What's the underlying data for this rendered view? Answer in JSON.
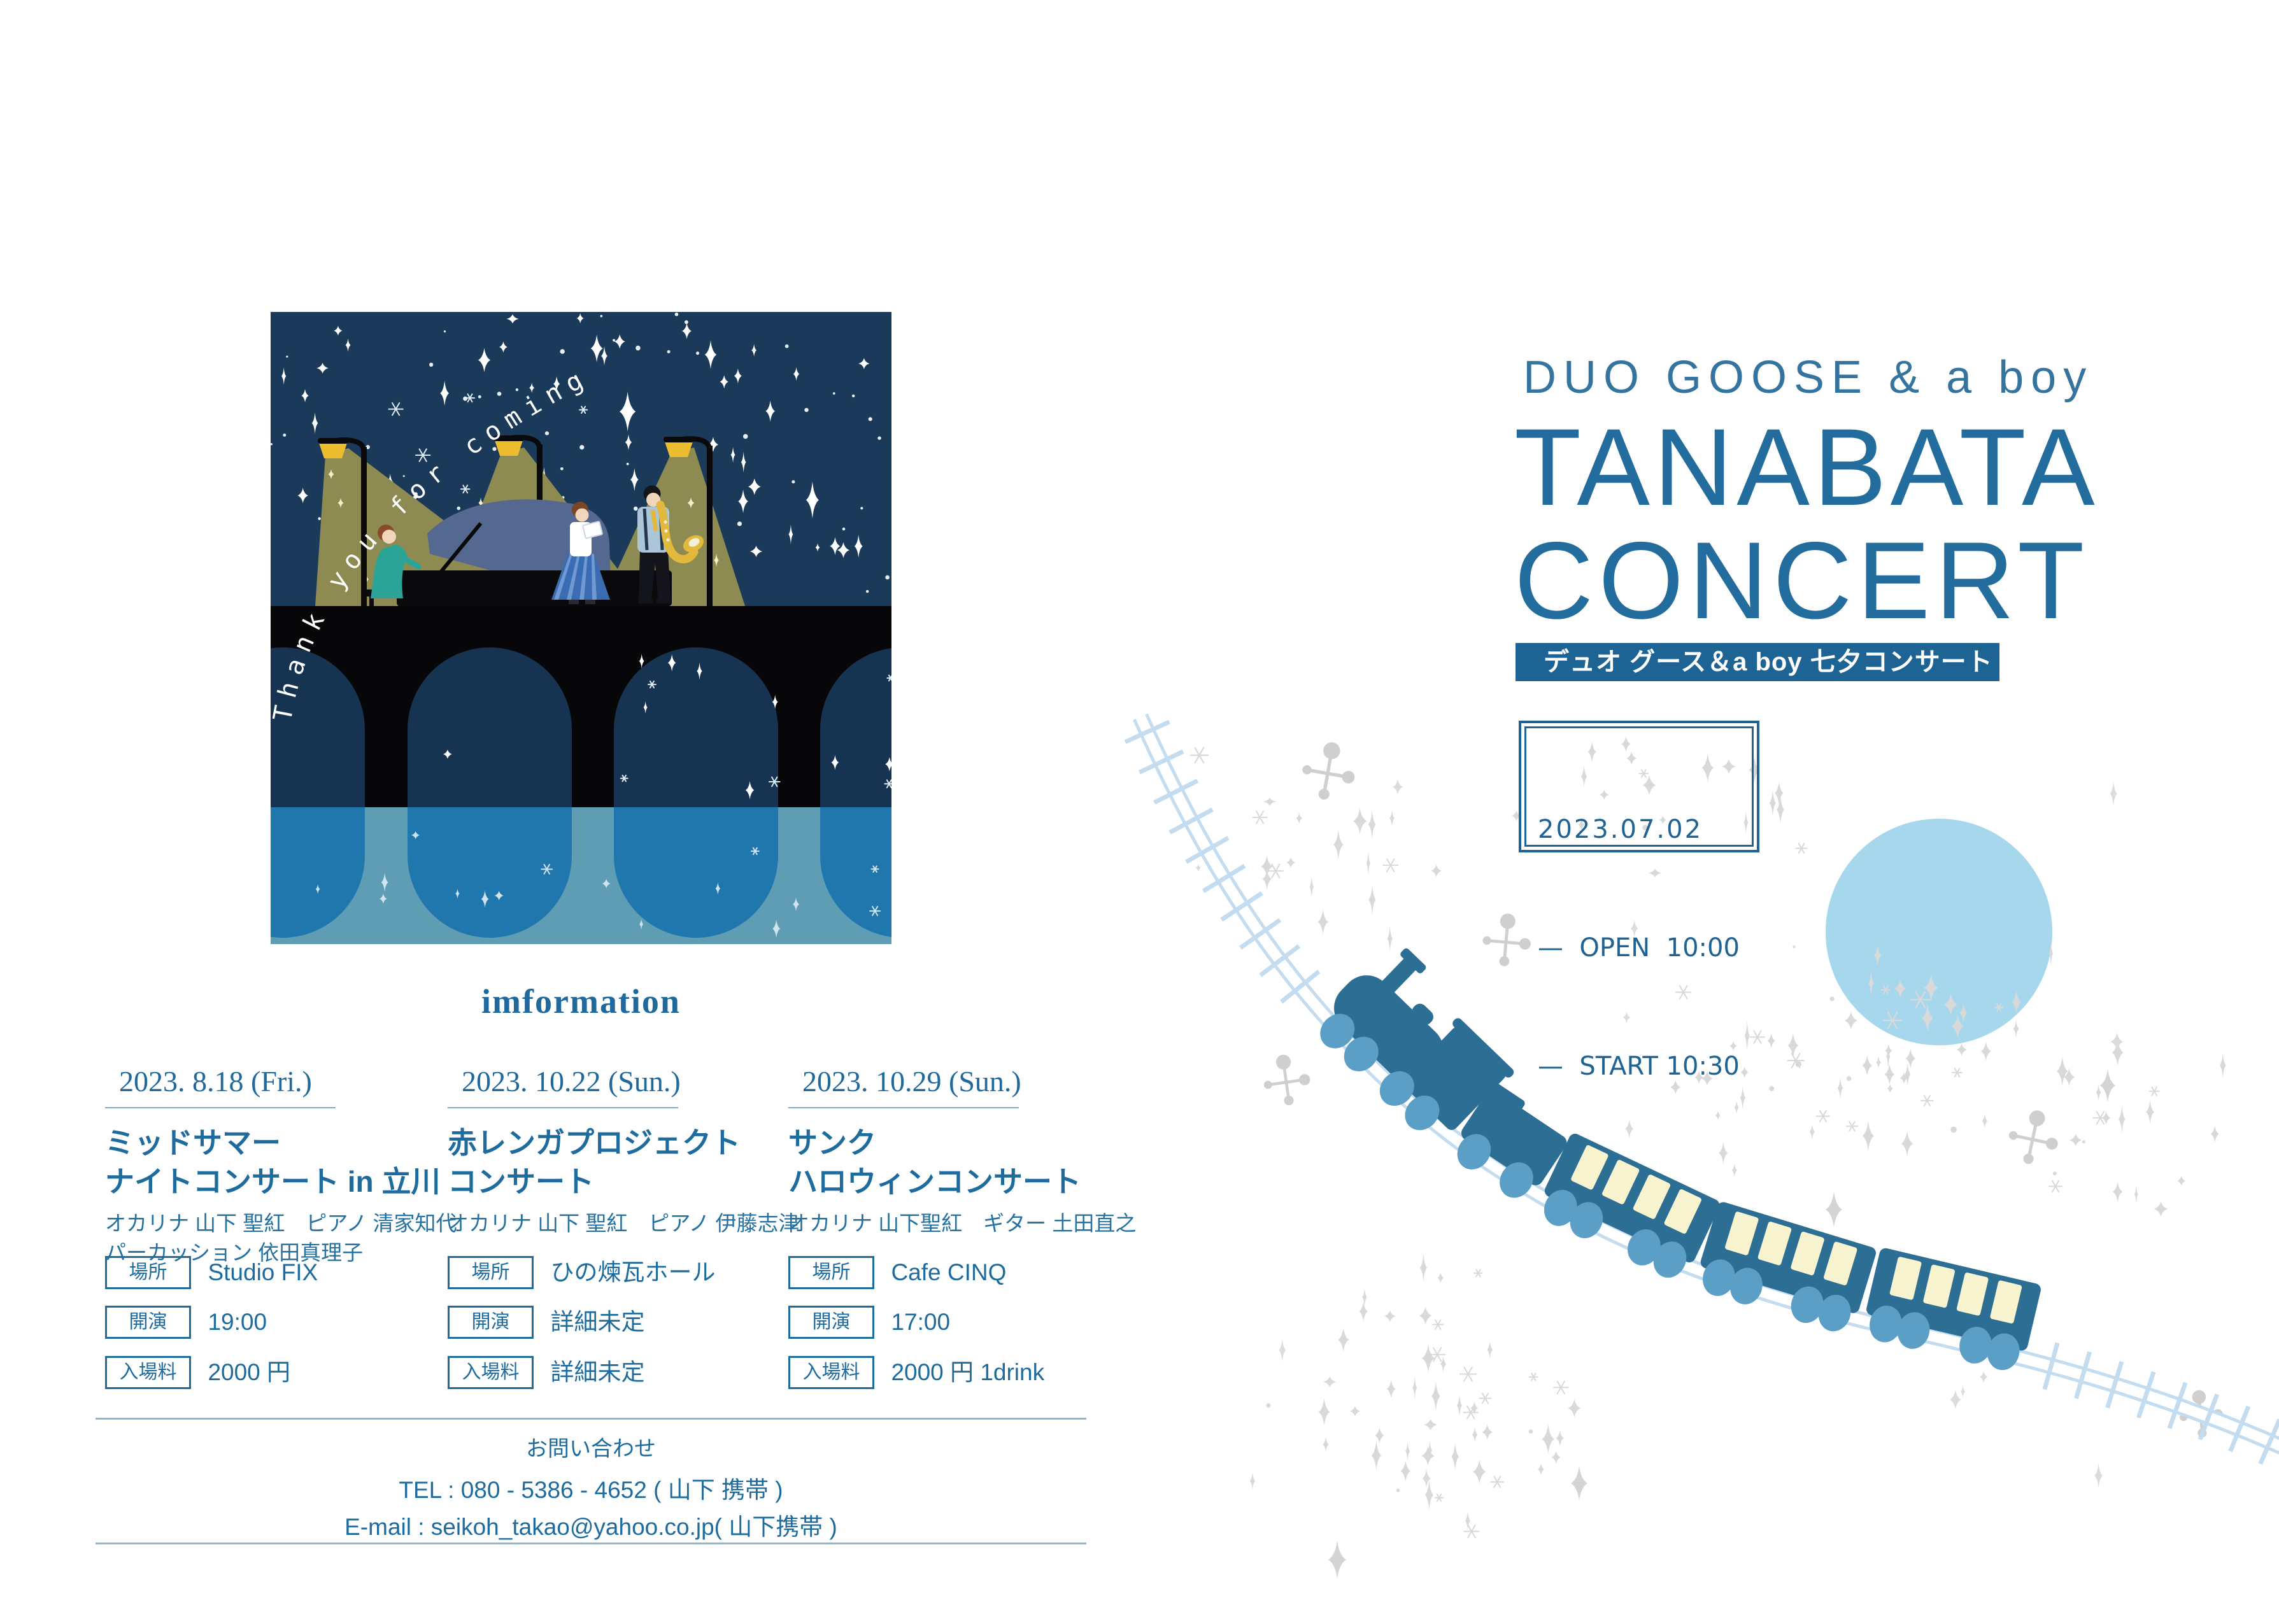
{
  "left": {
    "illustration": {
      "caption": "Thank you for coming"
    },
    "info_heading": "imformation",
    "events": [
      {
        "date": "2023. 8.18 (Fri.)",
        "title_line1": "ミッドサマー",
        "title_line2": "ナイトコンサート in 立川",
        "performers_line1": "オカリナ 山下 聖紅　ピアノ 清家知代",
        "performers_line2": "パーカッション 依田真理子",
        "rows": [
          {
            "label": "場所",
            "value": "Studio FIX"
          },
          {
            "label": "開演",
            "value": "19:00"
          },
          {
            "label": "入場料",
            "value": "2000 円"
          }
        ]
      },
      {
        "date": "2023. 10.22 (Sun.)",
        "title_line1": "赤レンガプロジェクト",
        "title_line2": "コンサート",
        "performers_line1": "オカリナ 山下 聖紅　ピアノ 伊藤志津",
        "performers_line2": "",
        "rows": [
          {
            "label": "場所",
            "value": "ひの煉瓦ホール"
          },
          {
            "label": "開演",
            "value": "詳細未定"
          },
          {
            "label": "入場料",
            "value": "詳細未定"
          }
        ]
      },
      {
        "date": "2023. 10.29 (Sun.)",
        "title_line1": "サンク",
        "title_line2": "ハロウィンコンサート",
        "performers_line1": "オカリナ 山下聖紅　ギター 土田直之",
        "performers_line2": "",
        "rows": [
          {
            "label": "場所",
            "value": "Cafe CINQ"
          },
          {
            "label": "開演",
            "value": "17:00"
          },
          {
            "label": "入場料",
            "value": "2000 円 1drink"
          }
        ]
      }
    ],
    "contact": {
      "heading": "お問い合わせ",
      "tel": "TEL : 080 - 5386 - 4652 ( 山下 携帯 )",
      "email": "E-mail : seikoh_takao@yahoo.co.jp( 山下携帯 )"
    }
  },
  "right": {
    "artist_line": "DUO GOOSE & a boy",
    "title_line1": "TANABATA",
    "title_line2": "CONCERT",
    "subtitle_band": "デュオ グース＆a boy 七夕コンサート",
    "schedule_box": {
      "date": "2023.07.02",
      "open_line": "—  OPEN  10:00",
      "start_line": "—  START 10:30"
    }
  },
  "colors": {
    "accent_blue": "#1e6b9e",
    "band_navy": "#1d6394",
    "night_sky": "#1b3a5a",
    "moon_blue": "#a7d7ec",
    "train_body": "#2d6e94",
    "train_wheel": "#5b9fc6",
    "track_blue": "#c3dcef",
    "sparkle_gray": "#d9d9d9"
  }
}
